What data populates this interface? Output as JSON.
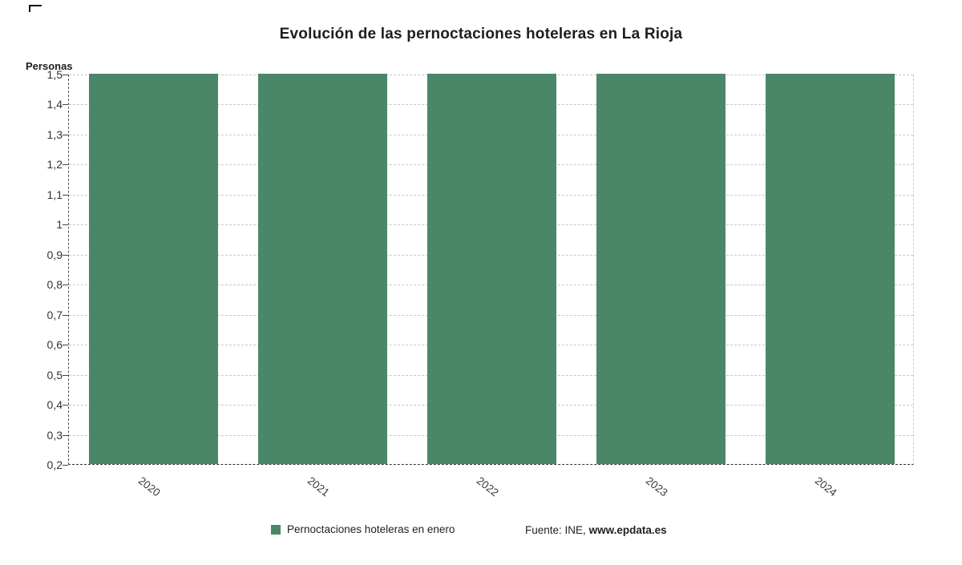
{
  "title": "Evolución de las pernoctaciones hoteleras en La Rioja",
  "y_axis_title": "Personas",
  "legend": {
    "series_label": "Pernoctaciones hoteleras en enero",
    "source_prefix": "Fuente: INE,",
    "source_link": "www.epdata.es"
  },
  "colors": {
    "bar": "#4a8768",
    "grid": "#c9c9c9",
    "axis": "#333333",
    "text": "#333333"
  },
  "chart_data": {
    "type": "bar",
    "categories": [
      "2020",
      "2021",
      "2022",
      "2023",
      "2024"
    ],
    "values": [
      1.5,
      1.5,
      1.5,
      1.5,
      1.5
    ],
    "title": "Evolución de las pernoctaciones hoteleras en La Rioja",
    "xlabel": "",
    "ylabel": "Personas",
    "ylim": [
      0.2,
      1.5
    ],
    "yticks": [
      1.5,
      1.4,
      1.3,
      1.2,
      1.1,
      1.0,
      0.9,
      0.8,
      0.7,
      0.6,
      0.5,
      0.4,
      0.3,
      0.2
    ],
    "ytick_labels": [
      "1,5",
      "1,4",
      "1,3",
      "1,2",
      "1,1",
      "1",
      "0,9",
      "0,8",
      "0,7",
      "0,6",
      "0,5",
      "0,4",
      "0,3",
      "0,2"
    ],
    "grid": true,
    "legend_position": "bottom"
  }
}
